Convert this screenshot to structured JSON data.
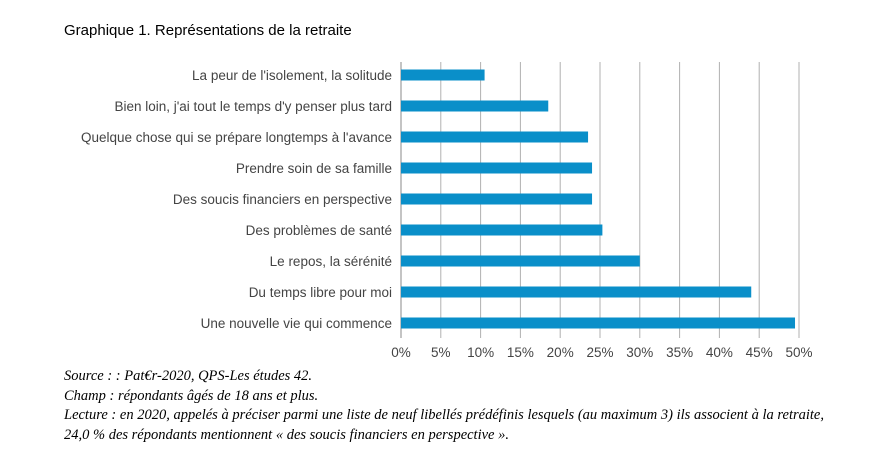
{
  "figure": {
    "title": "Graphique 1. Représentations de la retraite",
    "source": "Source : : Pat€r-2020, QPS-Les études 42.",
    "champ": "Champ : répondants âgés de 18 ans et plus.",
    "lecture": "Lecture : en 2020, appelés à préciser parmi une liste de neuf libellés prédéfinis lesquels (au maximum 3) ils associent à la retraite, 24,0 % des répondants mentionnent « des soucis financiers en perspective »."
  },
  "chart_data": {
    "type": "bar",
    "orientation": "horizontal",
    "title": "",
    "xlabel": "",
    "ylabel": "",
    "categories": [
      "La peur de l'isolement, la solitude",
      "Bien loin, j'ai tout le temps d'y penser plus tard",
      "Quelque chose qui se prépare longtemps à l'avance",
      "Prendre soin de sa famille",
      "Des soucis financiers en perspective",
      "Des problèmes de santé",
      "Le repos, la sérénité",
      "Du temps libre pour moi",
      "Une nouvelle vie qui commence"
    ],
    "values": [
      10.5,
      18.5,
      23.5,
      24.0,
      24.0,
      25.3,
      30.0,
      44.0,
      49.5
    ],
    "xlim": [
      0,
      50
    ],
    "xticks": [
      "0%",
      "5%",
      "10%",
      "15%",
      "20%",
      "25%",
      "30%",
      "35%",
      "40%",
      "45%",
      "50%"
    ],
    "grid": "vertical",
    "bar_color": "#0a8fc9",
    "grid_color": "#b0b0b0"
  }
}
